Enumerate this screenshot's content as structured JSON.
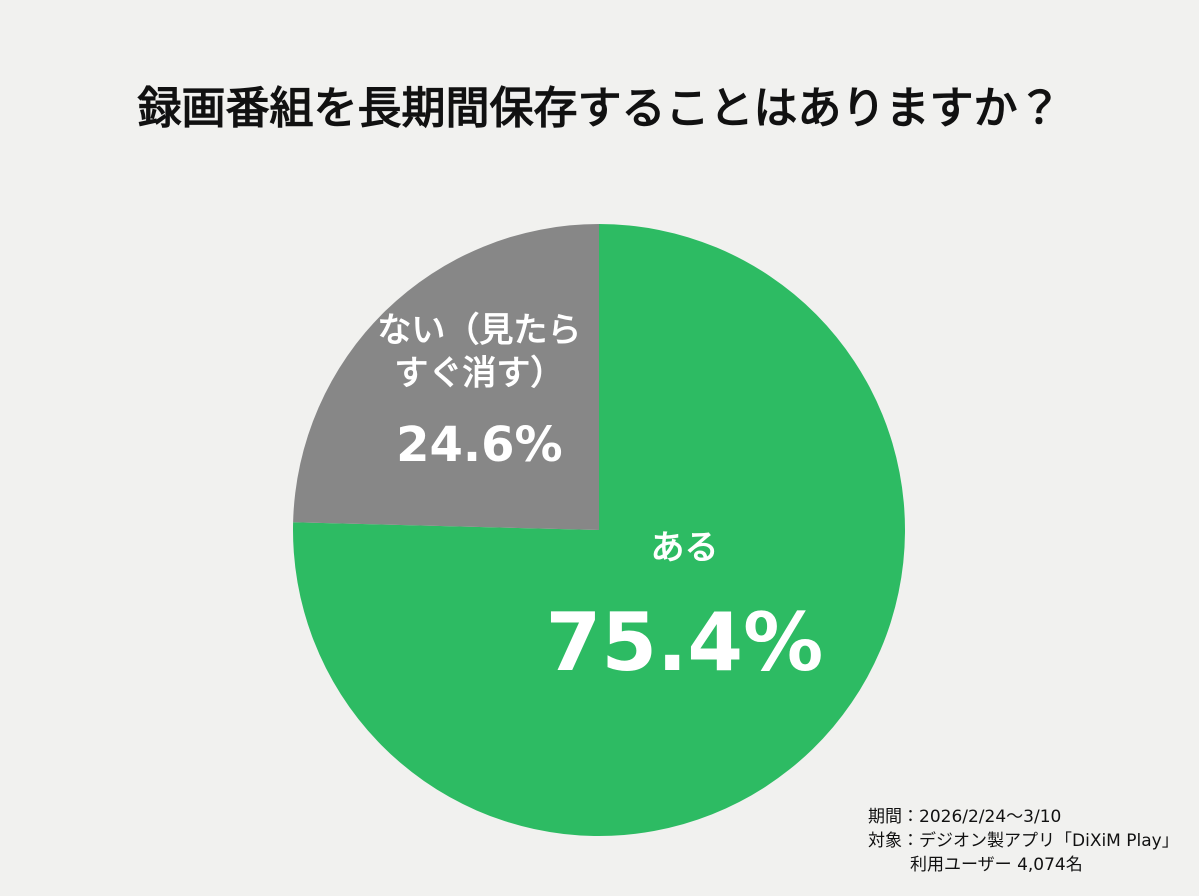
{
  "chart_data": {
    "type": "pie",
    "title": "録画番組を長期間保存することはありますか？",
    "categories": [
      "ある",
      "ない（見たらすぐ消す）"
    ],
    "values": [
      75.4,
      24.6
    ],
    "value_labels": [
      "75.4%",
      "24.6%"
    ],
    "colors": [
      "#2dbb63",
      "#878787"
    ],
    "notes": [
      "期間：2026/2/24〜3/10",
      "対象：デジオン製アプリ「DiXiM Play」",
      "利用ユーザー 4,074名"
    ]
  }
}
